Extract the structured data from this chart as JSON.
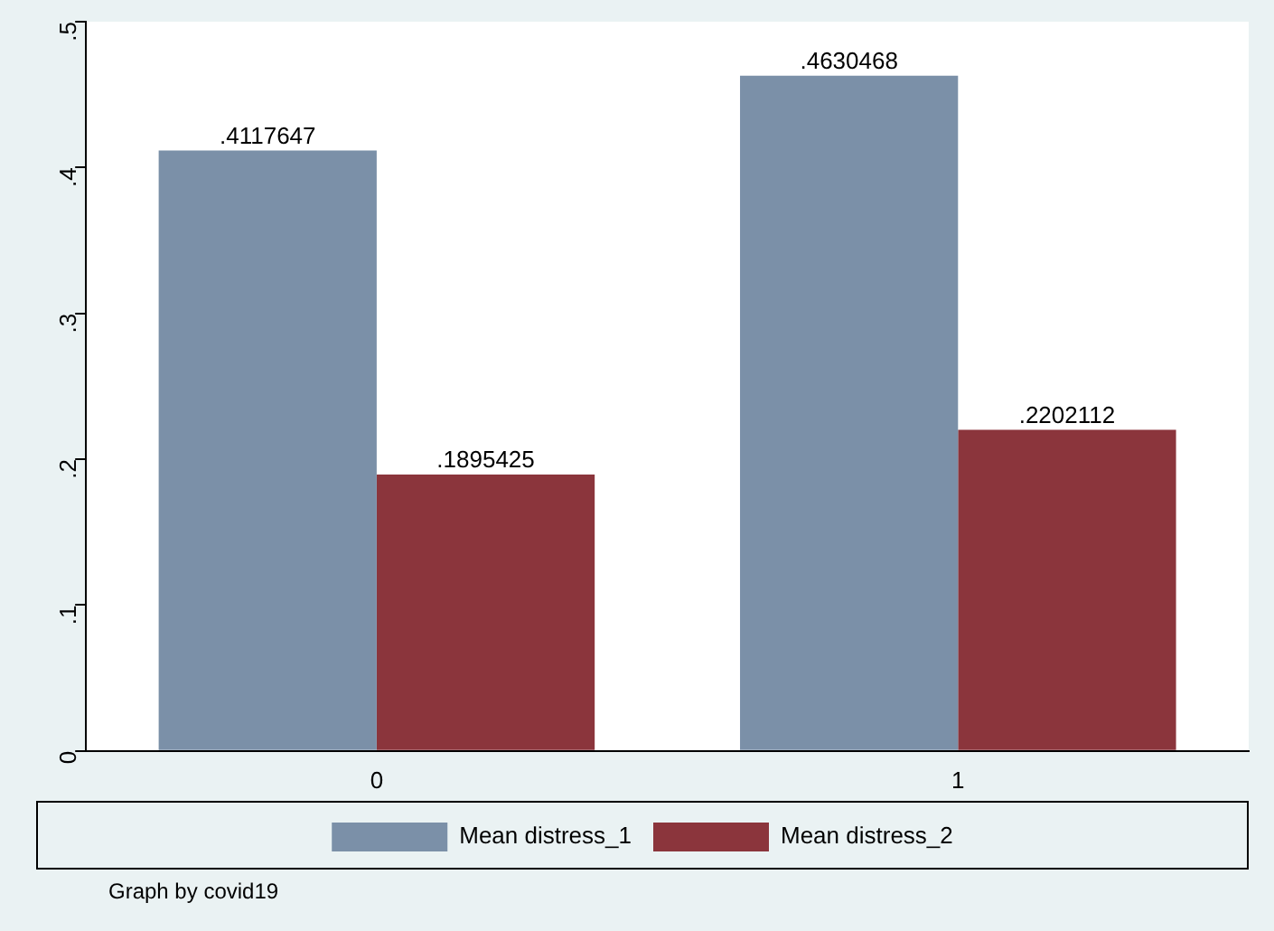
{
  "chart_data": {
    "type": "bar",
    "categories": [
      "0",
      "1"
    ],
    "series": [
      {
        "name": "Mean distress_1",
        "color": "#7b90a8",
        "values": [
          0.4117647,
          0.4630468
        ],
        "value_labels": [
          ".4117647",
          ".4630468"
        ]
      },
      {
        "name": "Mean distress_2",
        "color": "#8b353c",
        "values": [
          0.1895425,
          0.2202112
        ],
        "value_labels": [
          ".1895425",
          ".2202112"
        ]
      }
    ],
    "ylim": [
      0,
      0.5
    ],
    "yticks": [
      {
        "value": 0,
        "label": "0"
      },
      {
        "value": 0.1,
        "label": ".1"
      },
      {
        "value": 0.2,
        "label": ".2"
      },
      {
        "value": 0.3,
        "label": ".3"
      },
      {
        "value": 0.4,
        "label": ".4"
      },
      {
        "value": 0.5,
        "label": ".5"
      }
    ],
    "grid": false,
    "legend": "bottom",
    "annotations": [
      "Graph by covid19"
    ]
  }
}
